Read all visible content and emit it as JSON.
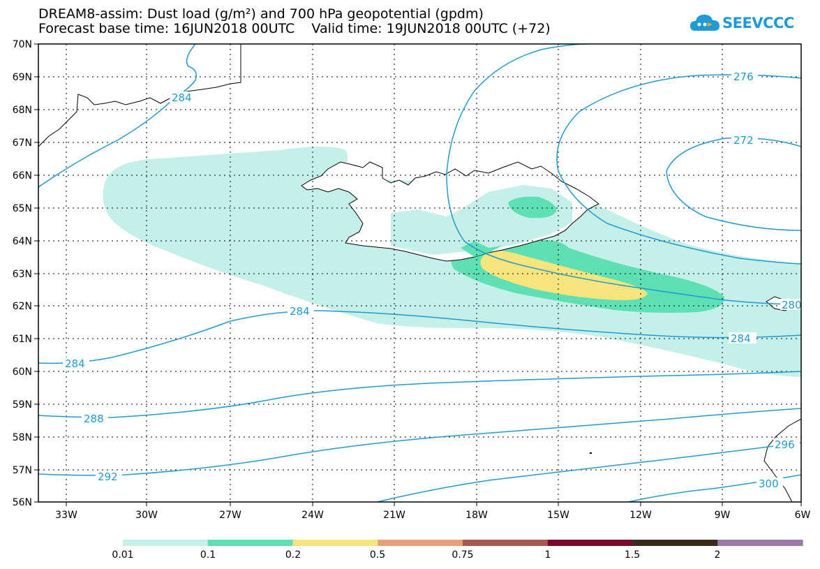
{
  "title": {
    "line1": "DREAM8-assim: Dust load (g/m²) and 700 hPa geopotential (gpdm)",
    "line2": "Forecast base time: 16JUN2018 00UTC    Valid time: 19JUN2018 00UTC (+72)"
  },
  "logo": {
    "text": "SEEVCCC",
    "icon": "cloud-icon"
  },
  "map": {
    "lat_labels": [
      "70N",
      "69N",
      "68N",
      "67N",
      "66N",
      "65N",
      "64N",
      "63N",
      "62N",
      "61N",
      "60N",
      "59N",
      "58N",
      "57N",
      "56N"
    ],
    "lon_labels": [
      "33W",
      "30W",
      "27W",
      "24W",
      "21W",
      "18W",
      "15W",
      "12W",
      "9W",
      "6W"
    ],
    "contour_labels": [
      "284",
      "276",
      "272",
      "280",
      "284",
      "284",
      "284",
      "288",
      "292",
      "296",
      "300"
    ],
    "contour_color": "#1e9ad6",
    "fill_colors": [
      "#c4f0e8",
      "#5ee0b4",
      "#f6e57c"
    ]
  },
  "colorbar": {
    "labels": [
      "0.01",
      "0.1",
      "0.2",
      "0.5",
      "0.75",
      "1",
      "1.5",
      "2"
    ],
    "colors": [
      "#c4f0e8",
      "#5ee0b4",
      "#f6e57c",
      "#e8a07a",
      "#a85a50",
      "#7a0a2c",
      "#3a2a1a",
      "#9b7aaa"
    ]
  }
}
